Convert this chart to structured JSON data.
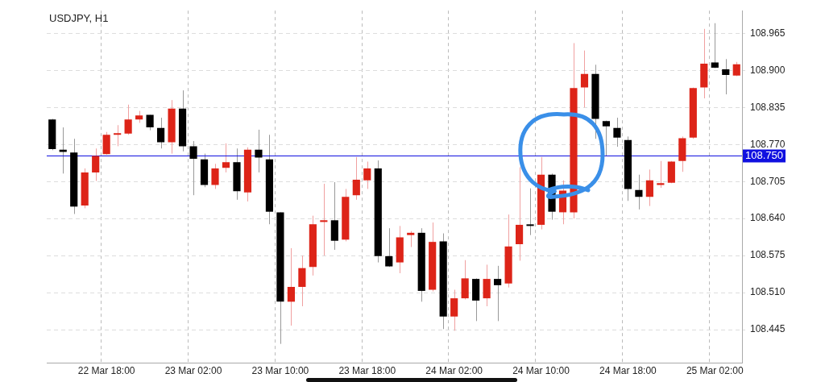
{
  "chart_data": {
    "type": "candlestick",
    "title": "USDJPY, H1",
    "categories": [
      null,
      null,
      null,
      null,
      null,
      "22 Mar 18:00",
      null,
      null,
      null,
      null,
      null,
      null,
      null,
      "23 Mar 02:00",
      null,
      null,
      null,
      null,
      null,
      null,
      null,
      "23 Mar 10:00",
      null,
      null,
      null,
      null,
      null,
      null,
      null,
      "23 Mar 18:00",
      null,
      null,
      null,
      null,
      null,
      null,
      null,
      "24 Mar 02:00",
      null,
      null,
      null,
      null,
      null,
      null,
      null,
      "24 Mar 10:00",
      null,
      null,
      null,
      null,
      null,
      null,
      null,
      "24 Mar 18:00",
      null,
      null,
      null,
      null,
      null,
      null,
      null,
      "25 Mar 02:00",
      null,
      null
    ],
    "ohlc": [
      [
        108.814,
        108.815,
        108.76,
        108.762
      ],
      [
        108.761,
        108.8,
        108.719,
        108.757
      ],
      [
        108.756,
        108.78,
        108.648,
        108.661
      ],
      [
        108.663,
        108.728,
        108.658,
        108.721
      ],
      [
        108.721,
        108.763,
        108.706,
        108.75
      ],
      [
        108.753,
        108.792,
        108.752,
        108.787
      ],
      [
        108.787,
        108.804,
        108.767,
        108.789
      ],
      [
        108.789,
        108.84,
        108.787,
        108.814
      ],
      [
        108.814,
        108.829,
        108.808,
        108.821
      ],
      [
        108.822,
        108.822,
        108.795,
        108.8
      ],
      [
        108.799,
        108.817,
        108.763,
        108.774
      ],
      [
        108.774,
        108.848,
        108.754,
        108.833
      ],
      [
        108.833,
        108.865,
        108.758,
        108.767
      ],
      [
        108.767,
        108.776,
        108.681,
        108.745
      ],
      [
        108.744,
        108.754,
        108.695,
        108.699
      ],
      [
        108.699,
        108.736,
        108.692,
        108.728
      ],
      [
        108.729,
        108.772,
        108.721,
        108.739
      ],
      [
        108.739,
        108.763,
        108.673,
        108.688
      ],
      [
        108.686,
        108.765,
        108.67,
        108.761
      ],
      [
        108.761,
        108.796,
        108.721,
        108.747
      ],
      [
        108.744,
        108.787,
        108.63,
        108.652
      ],
      [
        108.651,
        108.651,
        108.42,
        108.494
      ],
      [
        108.494,
        108.588,
        108.452,
        108.52
      ],
      [
        108.52,
        108.575,
        108.486,
        108.553
      ],
      [
        108.555,
        108.645,
        108.54,
        108.63
      ],
      [
        108.634,
        108.701,
        108.575,
        108.637
      ],
      [
        108.637,
        108.704,
        108.585,
        108.601
      ],
      [
        108.603,
        108.692,
        108.6,
        108.678
      ],
      [
        108.681,
        108.748,
        108.673,
        108.708
      ],
      [
        108.707,
        108.74,
        108.692,
        108.728
      ],
      [
        108.728,
        108.742,
        108.563,
        108.574
      ],
      [
        108.574,
        108.623,
        108.555,
        108.556
      ],
      [
        108.563,
        108.627,
        108.544,
        108.607
      ],
      [
        108.611,
        108.618,
        108.59,
        108.615
      ],
      [
        108.615,
        108.623,
        108.494,
        108.513
      ],
      [
        108.515,
        108.633,
        108.512,
        108.599
      ],
      [
        108.6,
        108.614,
        108.446,
        108.468
      ],
      [
        108.468,
        108.515,
        108.443,
        108.5
      ],
      [
        108.5,
        108.567,
        108.498,
        108.535
      ],
      [
        108.534,
        108.535,
        108.46,
        108.496
      ],
      [
        108.5,
        108.559,
        108.486,
        108.534
      ],
      [
        108.534,
        108.557,
        108.46,
        108.523
      ],
      [
        108.526,
        108.647,
        108.519,
        108.591
      ],
      [
        108.595,
        108.73,
        108.566,
        108.629
      ],
      [
        108.628,
        108.693,
        108.611,
        108.627
      ],
      [
        108.629,
        108.748,
        108.621,
        108.717
      ],
      [
        108.717,
        108.719,
        108.638,
        108.652
      ],
      [
        108.651,
        108.707,
        108.63,
        108.689
      ],
      [
        108.651,
        108.948,
        108.64,
        108.869
      ],
      [
        108.87,
        108.935,
        108.835,
        108.894
      ],
      [
        108.894,
        108.91,
        108.78,
        108.815
      ],
      [
        108.811,
        108.812,
        108.75,
        108.802
      ],
      [
        108.799,
        108.817,
        108.766,
        108.782
      ],
      [
        108.778,
        108.784,
        108.671,
        108.692
      ],
      [
        108.69,
        108.717,
        108.656,
        108.678
      ],
      [
        108.678,
        108.726,
        108.662,
        108.707
      ],
      [
        108.699,
        108.741,
        108.694,
        108.702
      ],
      [
        108.703,
        108.741,
        108.702,
        108.74
      ],
      [
        108.741,
        108.784,
        108.722,
        108.781
      ],
      [
        108.782,
        108.87,
        108.78,
        108.869
      ],
      [
        108.87,
        108.973,
        108.851,
        108.912
      ],
      [
        108.914,
        108.983,
        108.904,
        108.905
      ],
      [
        108.902,
        108.92,
        108.858,
        108.892
      ],
      [
        108.891,
        108.915,
        108.89,
        108.911
      ]
    ],
    "colors": [
      "#000000",
      "#000000",
      "#000000",
      "#dd2418",
      "#dd2418",
      "#dd2418",
      "#dd2418",
      "#dd2418",
      "#dd2418",
      "#000000",
      "#000000",
      "#dd2418",
      "#000000",
      "#000000",
      "#000000",
      "#dd2418",
      "#dd2418",
      "#000000",
      "#dd2418",
      "#000000",
      "#000000",
      "#000000",
      "#dd2418",
      "#dd2418",
      "#dd2418",
      "#dd2418",
      "#000000",
      "#dd2418",
      "#dd2418",
      "#dd2418",
      "#000000",
      "#000000",
      "#dd2418",
      "#dd2418",
      "#000000",
      "#dd2418",
      "#000000",
      "#dd2418",
      "#dd2418",
      "#000000",
      "#dd2418",
      "#000000",
      "#dd2418",
      "#dd2418",
      "#000000",
      "#dd2418",
      "#000000",
      "#dd2418",
      "#dd2418",
      "#dd2418",
      "#000000",
      "#000000",
      "#000000",
      "#000000",
      "#000000",
      "#dd2418",
      "#dd2418",
      "#dd2418",
      "#dd2418",
      "#dd2418",
      "#dd2418",
      "#000000",
      "#000000",
      "#dd2418"
    ],
    "ylim": [
      108.387,
      109.005
    ],
    "yticks": [
      {
        "value": 108.445,
        "label": "108.445"
      },
      {
        "value": 108.51,
        "label": "108.510"
      },
      {
        "value": 108.575,
        "label": "108.575"
      },
      {
        "value": 108.64,
        "label": "108.640"
      },
      {
        "value": 108.705,
        "label": "108.705"
      },
      {
        "value": 108.77,
        "label": "108.770"
      },
      {
        "value": 108.835,
        "label": "108.835"
      },
      {
        "value": 108.9,
        "label": "108.900"
      },
      {
        "value": 108.965,
        "label": "108.965"
      }
    ],
    "ref_lines": [
      {
        "axis": "y",
        "value": 108.75,
        "label": "108.750",
        "color": "#1010e0"
      }
    ],
    "grid": true
  }
}
